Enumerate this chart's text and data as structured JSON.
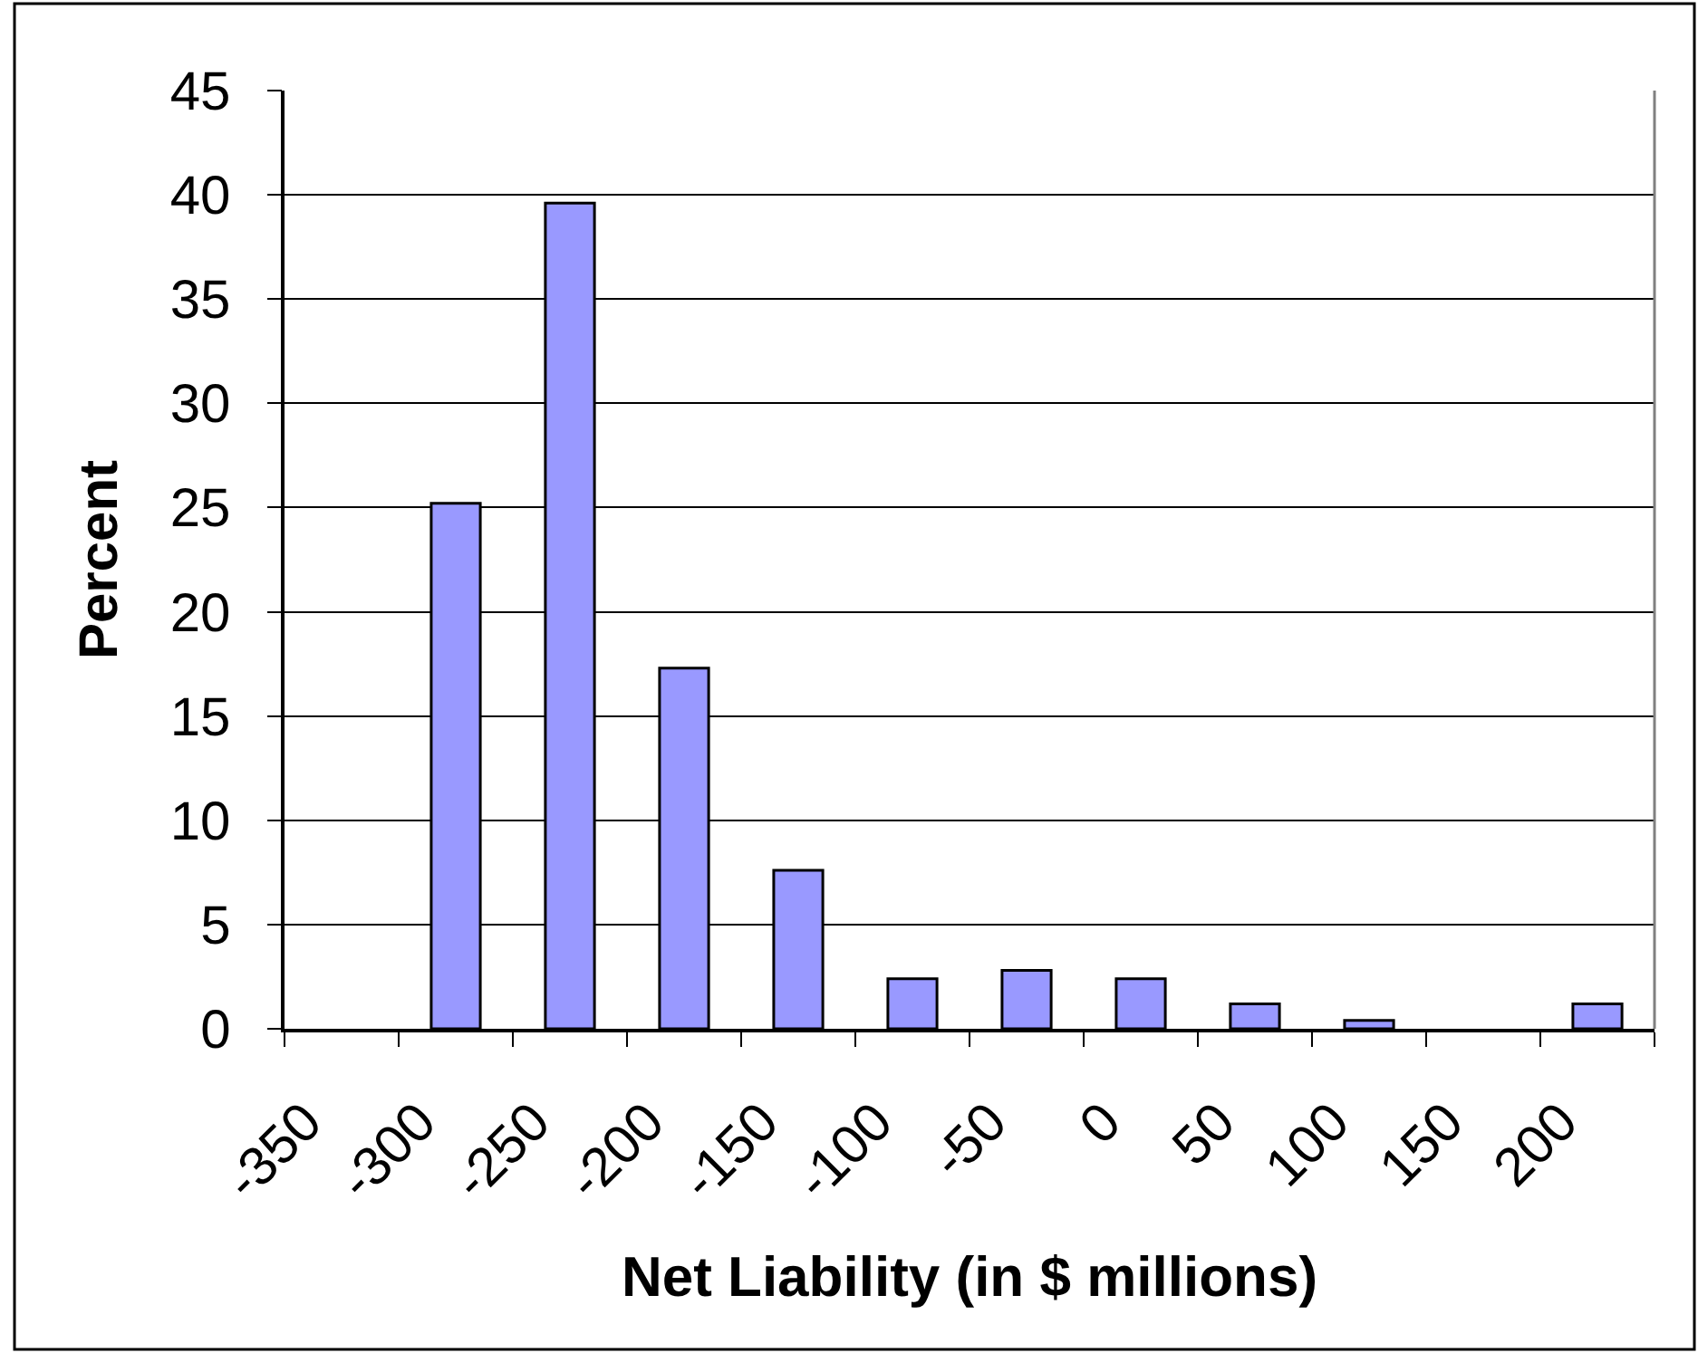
{
  "chart_data": {
    "type": "bar",
    "xlabel": "Net Liability (in $ millions)",
    "ylabel": "Percent",
    "categories": [
      "-350",
      "-300",
      "-250",
      "-200",
      "-150",
      "-100",
      "-50",
      "0",
      "50",
      "100",
      "150",
      "200"
    ],
    "values": [
      0,
      25.2,
      39.6,
      17.3,
      7.6,
      2.4,
      2.8,
      2.4,
      1.2,
      0.4,
      0,
      1.2
    ],
    "color": "#9999ff",
    "ylim": [
      0,
      45
    ],
    "yticks": [
      0,
      5,
      10,
      15,
      20,
      25,
      30,
      35,
      40,
      45
    ],
    "grid": "y"
  }
}
